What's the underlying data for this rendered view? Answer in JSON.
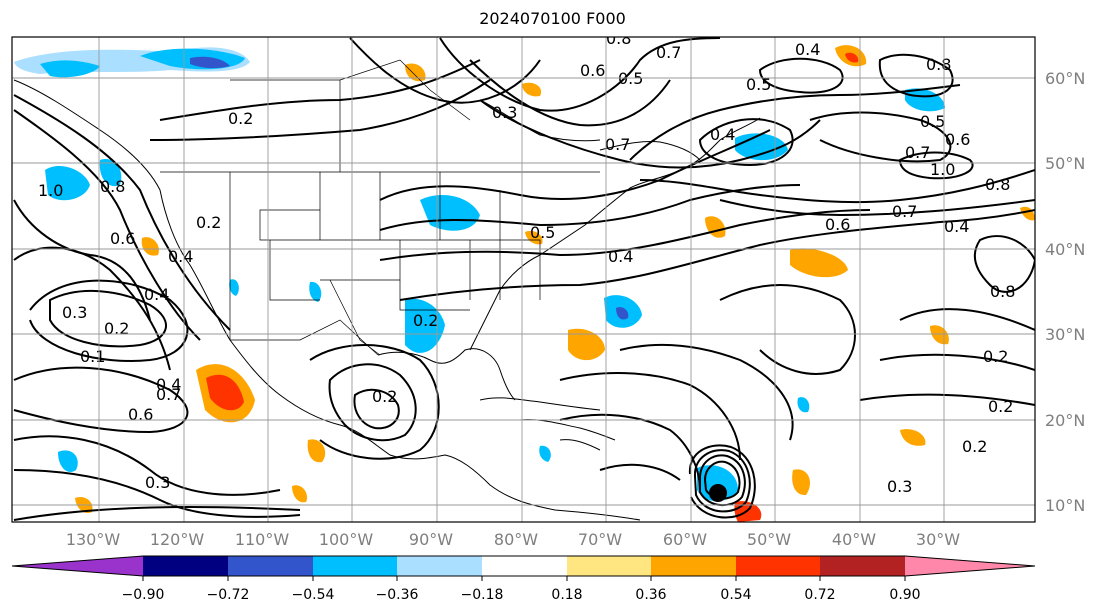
{
  "title": "2024070100 F000",
  "latitude_labels": [
    "60°N",
    "50°N",
    "40°N",
    "30°N",
    "20°N",
    "10°N"
  ],
  "longitude_labels": [
    "130°W",
    "120°W",
    "110°W",
    "100°W",
    "90°W",
    "80°W",
    "70°W",
    "60°W",
    "50°W",
    "40°W",
    "30°W"
  ],
  "colorbar": {
    "tick_labels": [
      "−0.90",
      "−0.72",
      "−0.54",
      "−0.36",
      "−0.18",
      "0.18",
      "0.36",
      "0.54",
      "0.72",
      "0.90"
    ],
    "colors": [
      "#9933cc",
      "#000080",
      "#3355cc",
      "#00bfff",
      "#aadfff",
      "#ffffff",
      "#ffe680",
      "#ffa500",
      "#ff3300",
      "#b22222",
      "#ff88aa"
    ]
  },
  "contour_labels": [
    "0.8",
    "0.7",
    "0.4",
    "0.6",
    "0.5",
    "0.5",
    "0.8",
    "0.3",
    "0.2",
    "0.7",
    "0.5",
    "0.6",
    "0.7",
    "1.0",
    "0.8",
    "0.4",
    "0.7",
    "0.6",
    "0.5",
    "0.4",
    "0.4",
    "0.8",
    "0.4",
    "1.0",
    "0.8",
    "0.6",
    "0.2",
    "0.4",
    "0.3",
    "0.2",
    "0.1",
    "0.4",
    "0.7",
    "0.6",
    "0.3",
    "0.2",
    "0.2",
    "0.2",
    "0.2",
    "0.2",
    "0.3"
  ],
  "colors": {
    "negative": "#00bfff",
    "negative_light": "#aadfff",
    "positive": "#ffa500",
    "positive_strong": "#ff3300",
    "contour": "#000000",
    "grid": "#999999"
  }
}
